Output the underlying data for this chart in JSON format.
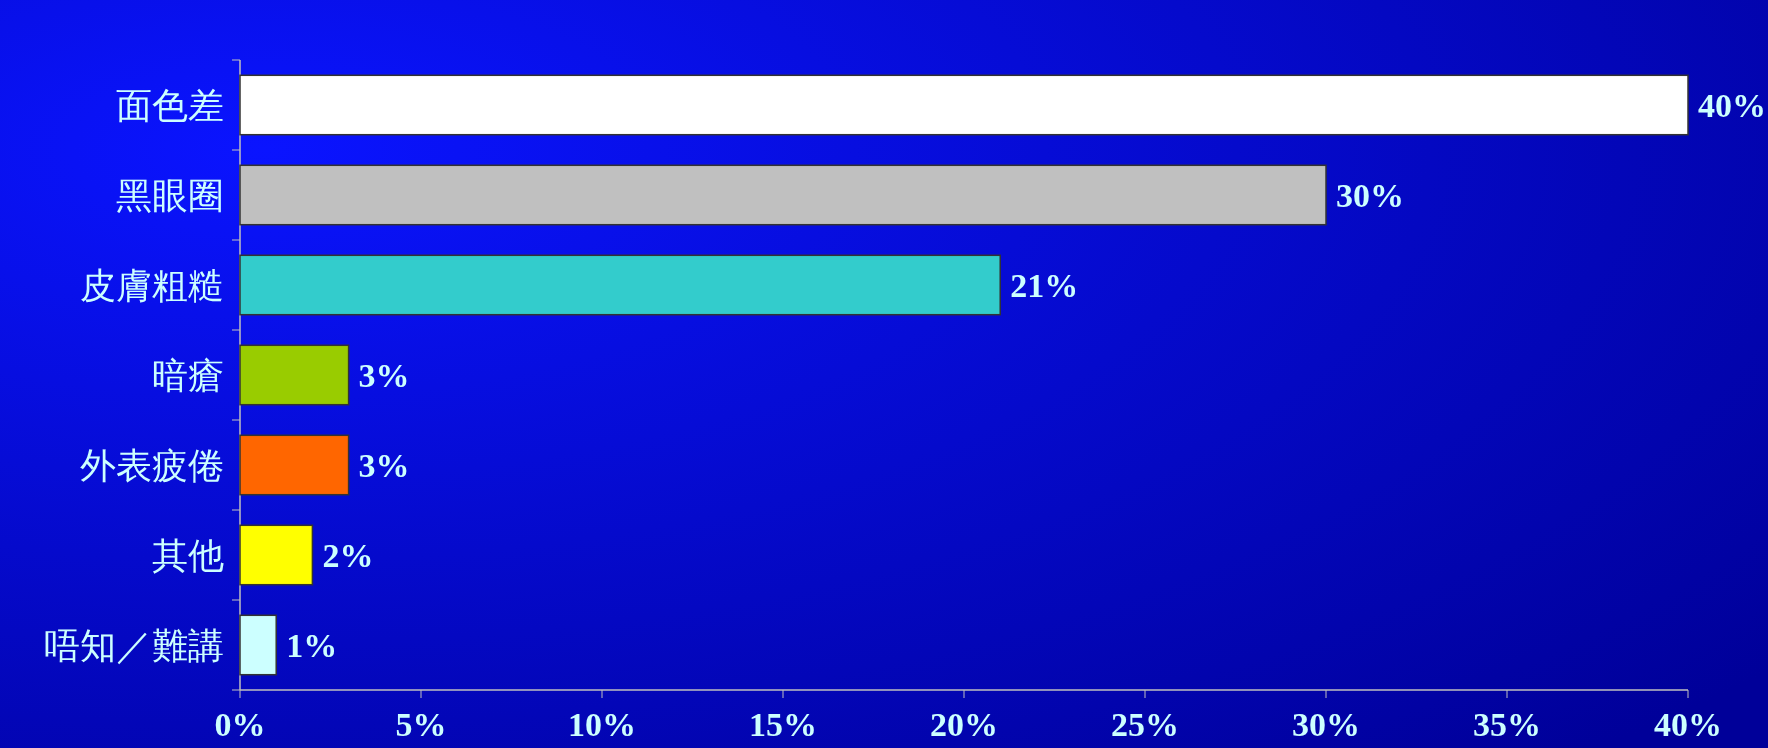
{
  "chart_data": {
    "type": "bar",
    "orientation": "horizontal",
    "categories": [
      "面色差",
      "黑眼圈",
      "皮膚粗糙",
      "暗瘡",
      "外表疲倦",
      "其他",
      "唔知／難講"
    ],
    "values": [
      40,
      30,
      21,
      3,
      3,
      2,
      1
    ],
    "colors": [
      "#ffffff",
      "#c0c0c0",
      "#33cccc",
      "#99cc00",
      "#ff6600",
      "#ffff00",
      "#ccffff"
    ],
    "value_labels": [
      "40%",
      "30%",
      "21%",
      "3%",
      "3%",
      "2%",
      "1%"
    ],
    "xlim": [
      0,
      40
    ],
    "xticks": [
      {
        "value": 0,
        "label": "0%"
      },
      {
        "value": 5,
        "label": "5%"
      },
      {
        "value": 10,
        "label": "10%"
      },
      {
        "value": 15,
        "label": "15%"
      },
      {
        "value": 20,
        "label": "20%"
      },
      {
        "value": 25,
        "label": "25%"
      },
      {
        "value": 30,
        "label": "30%"
      },
      {
        "value": 35,
        "label": "35%"
      },
      {
        "value": 40,
        "label": "40%"
      }
    ],
    "grid": false
  }
}
